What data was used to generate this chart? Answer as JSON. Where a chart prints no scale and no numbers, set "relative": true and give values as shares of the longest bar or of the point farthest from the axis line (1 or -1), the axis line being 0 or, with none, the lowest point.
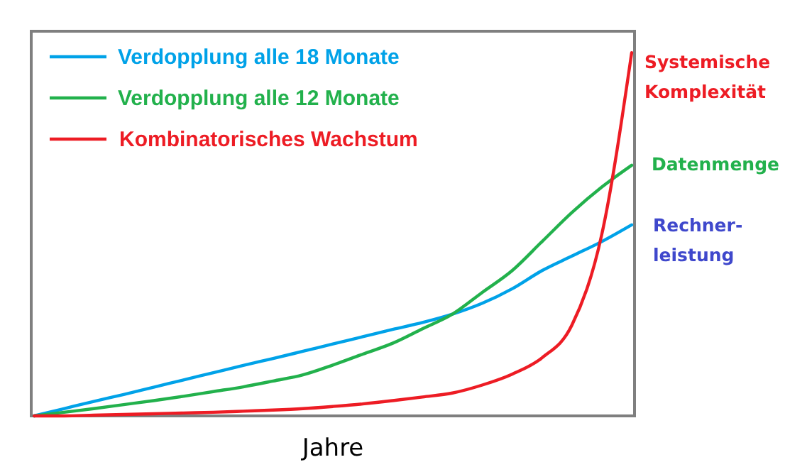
{
  "chart_data": {
    "type": "line",
    "relative": true,
    "xlabel": "Jahre",
    "legend": "top left",
    "categories": [
      null,
      null,
      null,
      null,
      null,
      null,
      null,
      null,
      null,
      null,
      null,
      null,
      null,
      null,
      null,
      null,
      null,
      null,
      null,
      null,
      null
    ],
    "series": [
      {
        "name": "Verdopplung alle 18 Monate",
        "color": "#00a2e8",
        "values": [
          0,
          0.02,
          0.04,
          0.059,
          0.079,
          0.099,
          0.119,
          0.139,
          0.158,
          0.178,
          0.198,
          0.218,
          0.238,
          0.257,
          0.28,
          0.31,
          0.35,
          0.4,
          0.44,
          0.48,
          0.526
        ]
      },
      {
        "name": "Verdopplung alle 12 Monate",
        "color": "#22b14c",
        "values": [
          0,
          0.01,
          0.02,
          0.031,
          0.042,
          0.054,
          0.067,
          0.08,
          0.096,
          0.113,
          0.14,
          0.17,
          0.2,
          0.24,
          0.28,
          0.34,
          0.4,
          0.48,
          0.56,
          0.63,
          0.69
        ]
      },
      {
        "name": "Kombinatorisches Wachstum",
        "color": "#ed1c24",
        "values": [
          0,
          0,
          0.002,
          0.004,
          0.006,
          0.008,
          0.01,
          0.013,
          0.016,
          0.02,
          0.026,
          0.033,
          0.042,
          0.052,
          0.063,
          0.085,
          0.115,
          0.16,
          0.25,
          0.5,
          1
        ]
      }
    ],
    "annotations": [
      "Systemische Komplexität",
      "Datenmenge",
      "Rechner- leistung"
    ]
  }
}
